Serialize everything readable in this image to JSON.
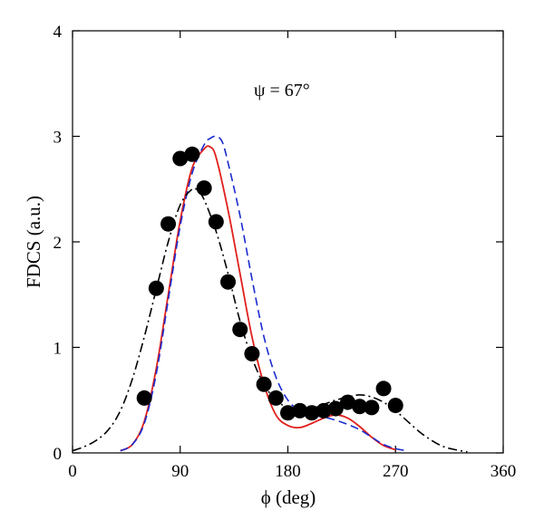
{
  "chart_data": {
    "type": "line",
    "xlabel": "ϕ (deg)",
    "ylabel": "FDCS (a.u.)",
    "annotation": "ψ = 67°",
    "xlim": [
      0,
      360
    ],
    "ylim": [
      0,
      4
    ],
    "x_ticks": [
      0,
      90,
      180,
      270,
      360
    ],
    "y_ticks": [
      0,
      1,
      2,
      3,
      4
    ],
    "grid": false,
    "series": [
      {
        "style": "scatter",
        "color": "#000000",
        "x": [
          60,
          70,
          80,
          90,
          100,
          110,
          120,
          130,
          140,
          150,
          160,
          170,
          180,
          190,
          200,
          210,
          220,
          230,
          240,
          250,
          260,
          270
        ],
        "y": [
          0.52,
          1.56,
          2.17,
          2.79,
          2.83,
          2.51,
          2.19,
          1.62,
          1.17,
          0.94,
          0.65,
          0.52,
          0.38,
          0.4,
          0.38,
          0.4,
          0.42,
          0.48,
          0.44,
          0.43,
          0.61,
          0.45
        ]
      },
      {
        "style": "solid",
        "color": "#e0201c",
        "x": [
          40,
          50,
          60,
          70,
          80,
          90,
          100,
          110,
          115,
          120,
          130,
          140,
          150,
          160,
          170,
          180,
          190,
          200,
          210,
          220,
          230,
          240,
          250,
          260,
          270
        ],
        "y": [
          0.02,
          0.08,
          0.3,
          0.8,
          1.5,
          2.2,
          2.7,
          2.88,
          2.9,
          2.8,
          2.3,
          1.7,
          1.1,
          0.65,
          0.36,
          0.26,
          0.24,
          0.28,
          0.33,
          0.36,
          0.33,
          0.25,
          0.15,
          0.07,
          0.03
        ]
      },
      {
        "style": "dashed",
        "color": "#1a2bd0",
        "x": [
          40,
          50,
          60,
          70,
          80,
          90,
          100,
          110,
          115,
          120,
          125,
          130,
          140,
          150,
          160,
          170,
          180,
          190,
          200,
          210,
          220,
          230,
          240,
          250,
          260,
          270,
          280
        ],
        "y": [
          0.02,
          0.08,
          0.28,
          0.75,
          1.45,
          2.15,
          2.65,
          2.92,
          2.98,
          3.0,
          2.95,
          2.75,
          2.25,
          1.65,
          1.1,
          0.72,
          0.5,
          0.4,
          0.36,
          0.34,
          0.31,
          0.27,
          0.22,
          0.15,
          0.08,
          0.04,
          0.02
        ]
      },
      {
        "style": "dash-dot",
        "color": "#000000",
        "x": [
          0,
          10,
          20,
          30,
          40,
          50,
          60,
          70,
          80,
          90,
          100,
          105,
          110,
          120,
          130,
          140,
          150,
          160,
          170,
          180,
          190,
          200,
          210,
          220,
          230,
          240,
          250,
          260,
          270,
          280,
          290,
          300,
          310,
          320,
          330
        ],
        "y": [
          0.02,
          0.06,
          0.12,
          0.22,
          0.4,
          0.7,
          1.1,
          1.55,
          2.0,
          2.35,
          2.5,
          2.48,
          2.4,
          2.1,
          1.7,
          1.25,
          0.9,
          0.65,
          0.5,
          0.43,
          0.41,
          0.42,
          0.46,
          0.5,
          0.53,
          0.55,
          0.53,
          0.48,
          0.4,
          0.3,
          0.2,
          0.12,
          0.06,
          0.03,
          0.01
        ]
      }
    ]
  }
}
